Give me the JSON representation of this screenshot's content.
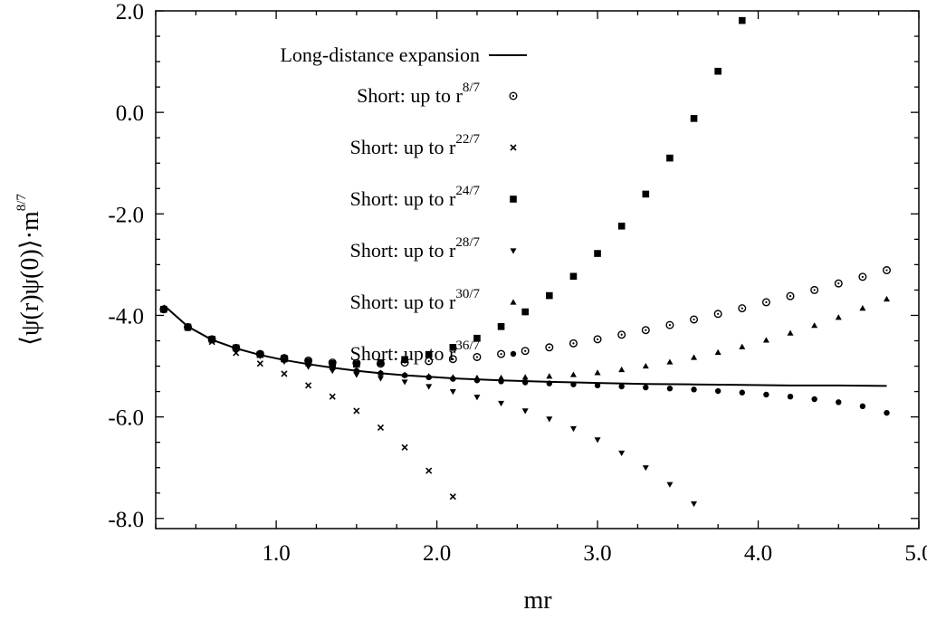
{
  "chart_data": {
    "type": "scatter",
    "title": "",
    "xlabel": "mr",
    "ylabel": {
      "text": "⟨ψ(r)ψ(0)⟩·m",
      "superscript": "8/7"
    },
    "xlim": [
      0.25,
      5.0
    ],
    "ylim": [
      -8.2,
      2.0
    ],
    "x_ticks": [
      "1.0",
      "2.0",
      "3.0",
      "4.0",
      "5.0"
    ],
    "y_ticks": [
      "2.0",
      "0.0",
      "-2.0",
      "-4.0",
      "-6.0",
      "-8.0"
    ],
    "grid": false,
    "legend_position": "top-center",
    "series": [
      {
        "name": "Long-distance expansion",
        "marker": "line",
        "x": [
          0.3,
          0.45,
          0.6,
          0.75,
          0.9,
          1.05,
          1.2,
          1.35,
          1.5,
          1.65,
          1.8,
          1.95,
          2.1,
          2.4,
          2.7,
          3.0,
          3.3,
          3.6,
          3.9,
          4.2,
          4.5,
          4.8
        ],
        "y": [
          -3.8,
          -4.22,
          -4.48,
          -4.65,
          -4.78,
          -4.88,
          -4.96,
          -5.03,
          -5.09,
          -5.14,
          -5.18,
          -5.21,
          -5.24,
          -5.28,
          -5.31,
          -5.33,
          -5.35,
          -5.36,
          -5.37,
          -5.38,
          -5.38,
          -5.39
        ]
      },
      {
        "name": "Short: up to r",
        "name_superscript": "8/7",
        "marker": "circle-dot",
        "x": [
          0.3,
          0.45,
          0.6,
          0.75,
          0.9,
          1.05,
          1.2,
          1.35,
          1.5,
          1.65,
          1.8,
          1.95,
          2.1,
          2.25,
          2.4,
          2.55,
          2.7,
          2.85,
          3.0,
          3.15,
          3.3,
          3.45,
          3.6,
          3.75,
          3.9,
          4.05,
          4.2,
          4.35,
          4.5,
          4.65,
          4.8
        ],
        "y": [
          -3.88,
          -4.23,
          -4.47,
          -4.64,
          -4.76,
          -4.84,
          -4.89,
          -4.93,
          -4.94,
          -4.95,
          -4.93,
          -4.9,
          -4.86,
          -4.82,
          -4.76,
          -4.7,
          -4.63,
          -4.55,
          -4.47,
          -4.38,
          -4.29,
          -4.19,
          -4.08,
          -3.97,
          -3.86,
          -3.74,
          -3.62,
          -3.5,
          -3.37,
          -3.24,
          -3.11
        ]
      },
      {
        "name": "Short: up to r",
        "name_superscript": "22/7",
        "marker": "x",
        "x": [
          0.3,
          0.45,
          0.6,
          0.75,
          0.9,
          1.05,
          1.2,
          1.35,
          1.5,
          1.65,
          1.8,
          1.95,
          2.1
        ],
        "y": [
          -3.88,
          -4.25,
          -4.52,
          -4.74,
          -4.95,
          -5.15,
          -5.38,
          -5.6,
          -5.88,
          -6.21,
          -6.6,
          -7.06,
          -7.57
        ]
      },
      {
        "name": "Short: up to r",
        "name_superscript": "24/7",
        "marker": "square",
        "x": [
          0.3,
          0.45,
          0.6,
          0.75,
          0.9,
          1.05,
          1.2,
          1.35,
          1.5,
          1.65,
          1.8,
          1.95,
          2.1,
          2.25,
          2.4,
          2.55,
          2.7,
          2.85,
          3.0,
          3.15,
          3.3,
          3.45,
          3.6,
          3.75,
          3.9
        ],
        "y": [
          -3.88,
          -4.23,
          -4.47,
          -4.64,
          -4.77,
          -4.85,
          -4.91,
          -4.95,
          -4.96,
          -4.93,
          -4.87,
          -4.77,
          -4.63,
          -4.45,
          -4.22,
          -3.93,
          -3.61,
          -3.23,
          -2.78,
          -2.24,
          -1.61,
          -0.9,
          -0.12,
          0.81,
          1.81
        ]
      },
      {
        "name": "Short: up to r",
        "name_superscript": "28/7",
        "marker": "triangle-down",
        "x": [
          0.3,
          0.45,
          0.6,
          0.75,
          0.9,
          1.05,
          1.2,
          1.35,
          1.5,
          1.65,
          1.8,
          1.95,
          2.1,
          2.25,
          2.4,
          2.55,
          2.7,
          2.85,
          3.0,
          3.15,
          3.3,
          3.45,
          3.6
        ],
        "y": [
          -3.88,
          -4.24,
          -4.49,
          -4.66,
          -4.8,
          -4.91,
          -5.01,
          -5.09,
          -5.17,
          -5.24,
          -5.31,
          -5.4,
          -5.5,
          -5.61,
          -5.73,
          -5.88,
          -6.04,
          -6.23,
          -6.45,
          -6.71,
          -7.0,
          -7.33,
          -7.71
        ]
      },
      {
        "name": "Short: up to r",
        "name_superscript": "30/7",
        "marker": "triangle-up",
        "x": [
          0.3,
          0.45,
          0.6,
          0.75,
          0.9,
          1.05,
          1.2,
          1.35,
          1.5,
          1.65,
          1.8,
          1.95,
          2.1,
          2.25,
          2.4,
          2.55,
          2.7,
          2.85,
          3.0,
          3.15,
          3.3,
          3.45,
          3.6,
          3.75,
          3.9,
          4.05,
          4.2,
          4.35,
          4.5,
          4.65,
          4.8
        ],
        "y": [
          -3.88,
          -4.23,
          -4.48,
          -4.65,
          -4.78,
          -4.88,
          -4.96,
          -5.03,
          -5.08,
          -5.13,
          -5.17,
          -5.2,
          -5.22,
          -5.23,
          -5.23,
          -5.22,
          -5.2,
          -5.17,
          -5.13,
          -5.07,
          -5.0,
          -4.92,
          -4.83,
          -4.73,
          -4.62,
          -4.49,
          -4.35,
          -4.2,
          -4.04,
          -3.86,
          -3.68
        ]
      },
      {
        "name": "Short: up to r",
        "name_superscript": "36/7",
        "marker": "dot",
        "x": [
          0.3,
          0.45,
          0.6,
          0.75,
          0.9,
          1.05,
          1.2,
          1.35,
          1.5,
          1.65,
          1.8,
          1.95,
          2.1,
          2.25,
          2.4,
          2.55,
          2.7,
          2.85,
          3.0,
          3.15,
          3.3,
          3.45,
          3.6,
          3.75,
          3.9,
          4.05,
          4.2,
          4.35,
          4.5,
          4.65,
          4.8
        ],
        "y": [
          -3.88,
          -4.23,
          -4.48,
          -4.65,
          -4.78,
          -4.88,
          -4.96,
          -5.03,
          -5.09,
          -5.14,
          -5.18,
          -5.22,
          -5.25,
          -5.28,
          -5.3,
          -5.32,
          -5.34,
          -5.36,
          -5.38,
          -5.4,
          -5.42,
          -5.44,
          -5.46,
          -5.49,
          -5.52,
          -5.56,
          -5.6,
          -5.65,
          -5.71,
          -5.79,
          -5.92
        ]
      }
    ]
  }
}
